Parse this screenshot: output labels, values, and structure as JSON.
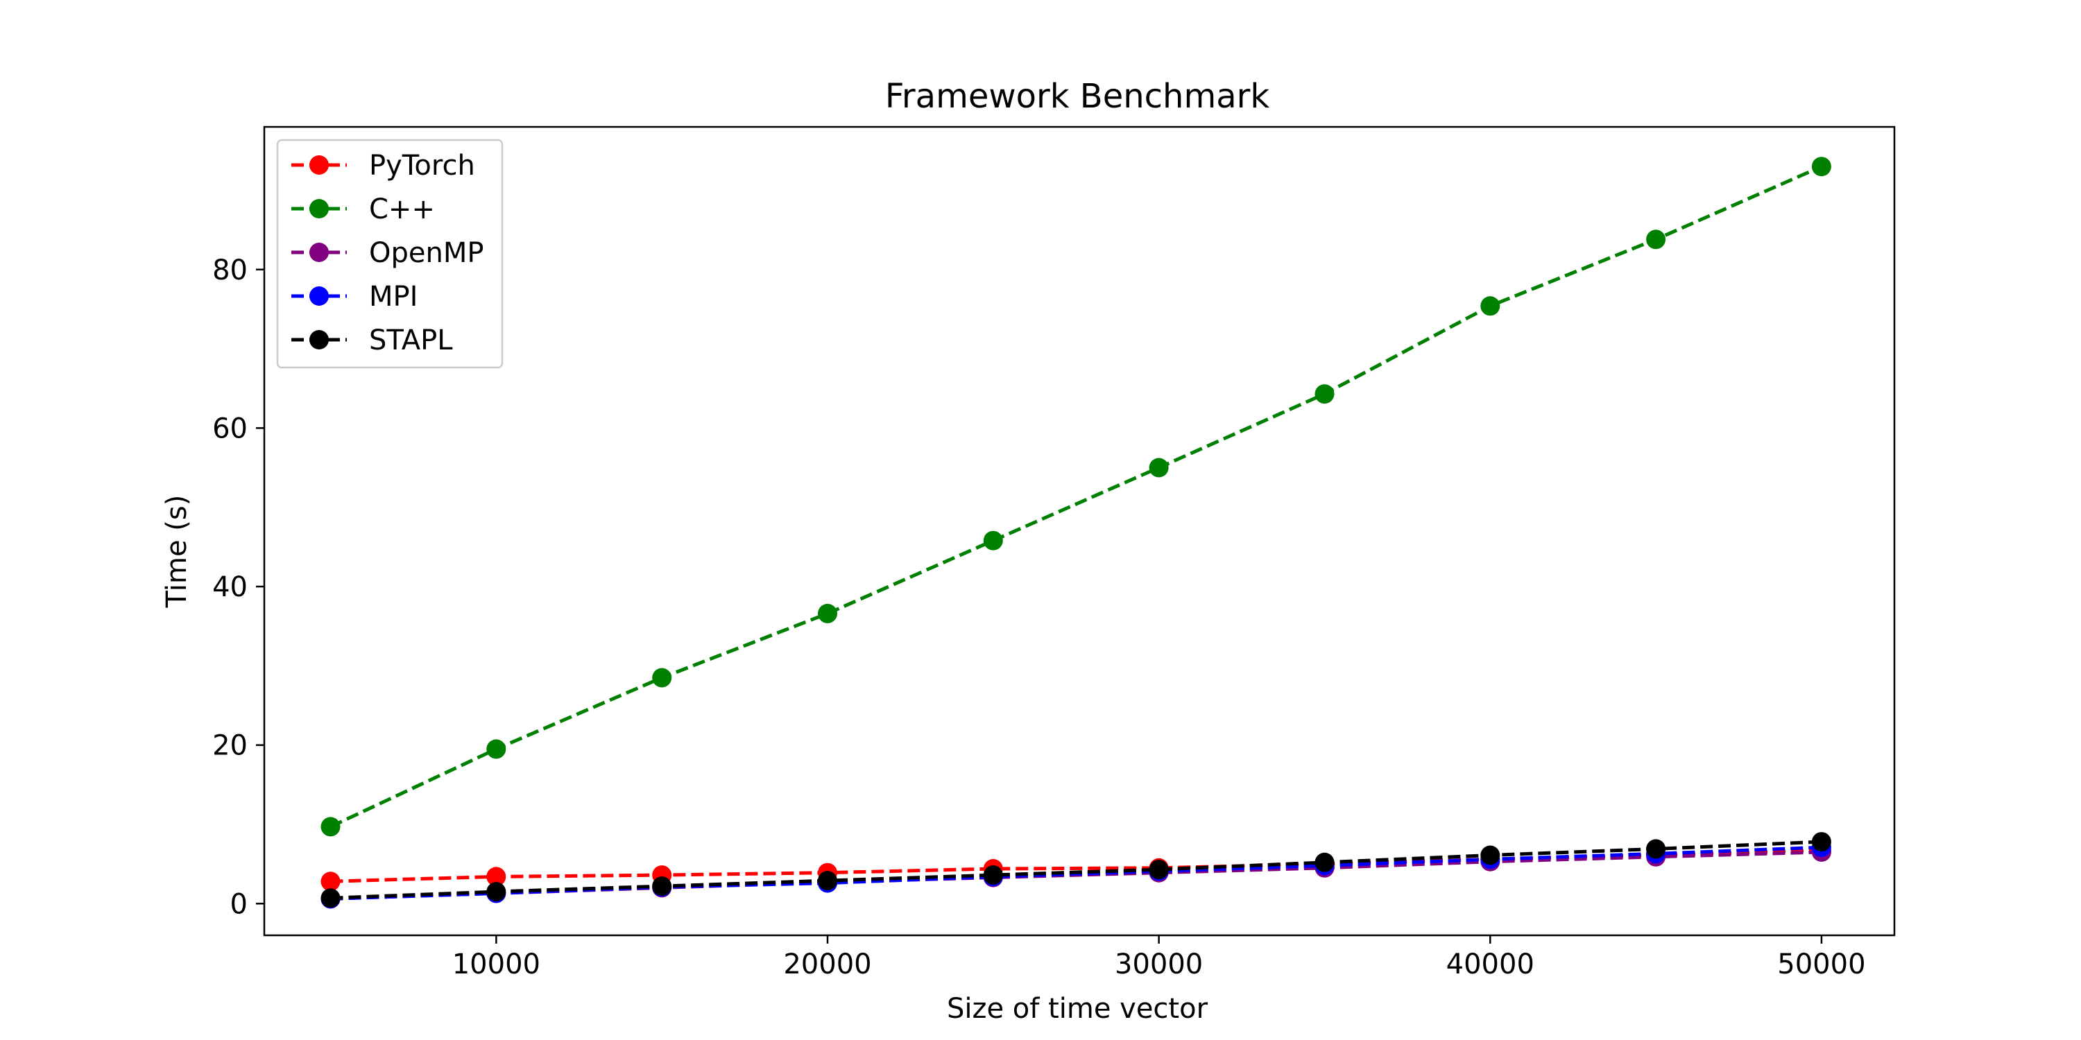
{
  "chart_data": {
    "type": "line",
    "title": "Framework Benchmark",
    "xlabel": "Size of time vector",
    "ylabel": "Time (s)",
    "x": [
      5000,
      10000,
      15000,
      20000,
      25000,
      30000,
      35000,
      40000,
      45000,
      50000
    ],
    "xlim": [
      3000,
      52200
    ],
    "ylim": [
      -4,
      98
    ],
    "xticks": [
      10000,
      20000,
      30000,
      40000,
      50000
    ],
    "xtick_labels": [
      "10000",
      "20000",
      "30000",
      "40000",
      "50000"
    ],
    "yticks": [
      0,
      20,
      40,
      60,
      80
    ],
    "ytick_labels": [
      "0",
      "20",
      "40",
      "60",
      "80"
    ],
    "grid": false,
    "legend_position": "top-left",
    "line_style": "dashed",
    "marker": "circle",
    "series": [
      {
        "name": "PyTorch",
        "color": "#ff0000",
        "values": [
          2.8,
          3.4,
          3.6,
          3.9,
          4.4,
          4.5,
          5.0,
          5.6,
          6.1,
          6.7
        ]
      },
      {
        "name": "C++",
        "color": "#008000",
        "values": [
          9.7,
          19.5,
          28.5,
          36.6,
          45.8,
          55.0,
          64.3,
          75.4,
          83.8,
          93.0
        ]
      },
      {
        "name": "OpenMP",
        "color": "#800080",
        "values": [
          0.6,
          1.3,
          2.0,
          2.7,
          3.3,
          3.9,
          4.5,
          5.3,
          5.9,
          6.5
        ]
      },
      {
        "name": "MPI",
        "color": "#0000ff",
        "values": [
          0.6,
          1.3,
          2.1,
          2.6,
          3.4,
          4.1,
          4.8,
          5.6,
          6.3,
          7.1
        ]
      },
      {
        "name": "STAPL",
        "color": "#000000",
        "values": [
          0.7,
          1.5,
          2.2,
          2.9,
          3.6,
          4.3,
          5.2,
          6.1,
          6.9,
          7.8
        ]
      }
    ]
  }
}
